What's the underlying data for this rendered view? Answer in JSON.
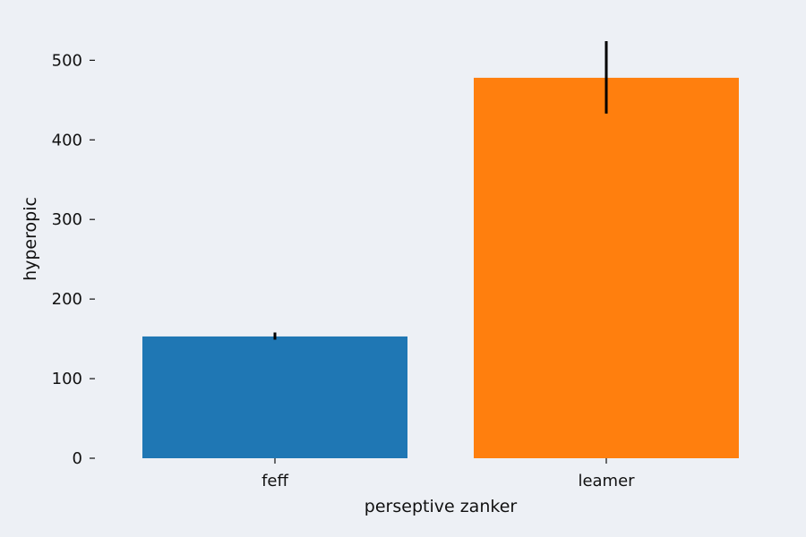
{
  "chart_data": {
    "type": "bar",
    "title": "",
    "xlabel": "perseptive zanker",
    "ylabel": "hyperopic",
    "categories": [
      "feff",
      "leamer"
    ],
    "values": [
      153,
      478
    ],
    "error_low": [
      149,
      433
    ],
    "error_high": [
      158,
      524
    ],
    "colors": [
      "#1f77b4",
      "#ff7f0e"
    ],
    "error_color": "#000000",
    "ylim": [
      0,
      524
    ],
    "yticks": [
      0,
      100,
      200,
      300,
      400,
      500
    ],
    "grid": false,
    "legend": "none"
  }
}
